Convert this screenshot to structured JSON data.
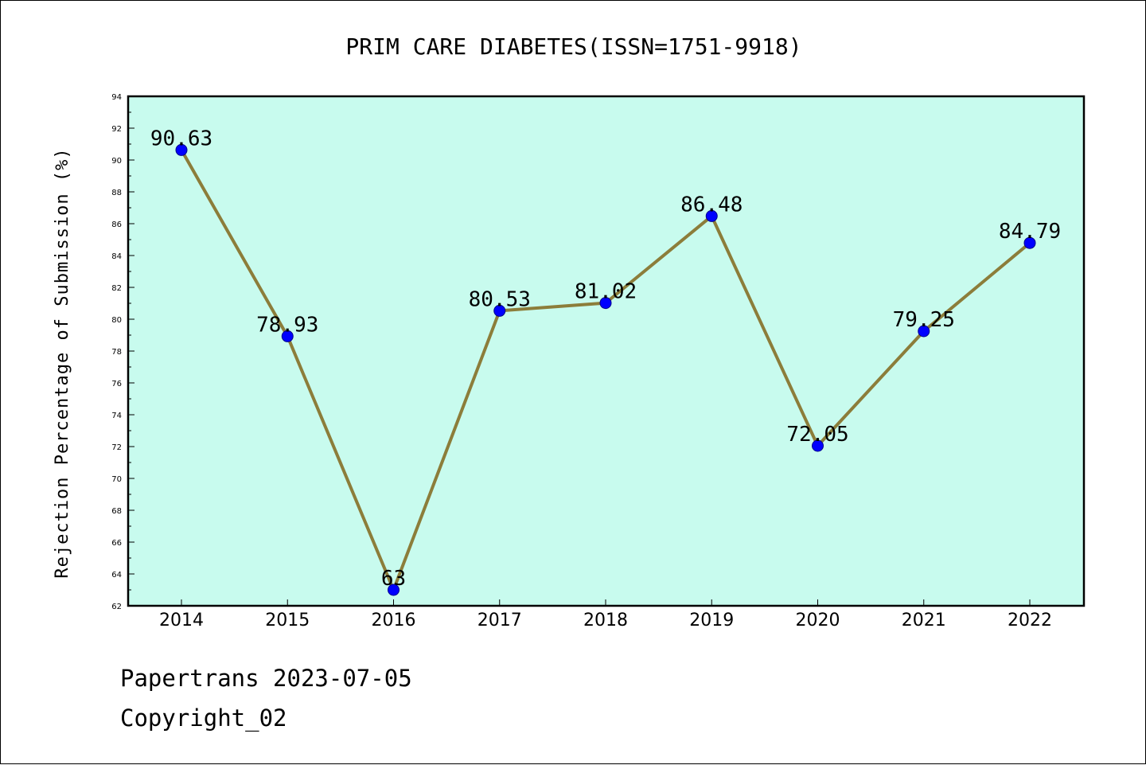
{
  "chart_data": {
    "type": "line",
    "title": "PRIM CARE DIABETES(ISSN=1751-9918)",
    "xlabel": "",
    "ylabel": "Rejection Percentage of Submission (%)",
    "categories": [
      "2014",
      "2015",
      "2016",
      "2017",
      "2018",
      "2019",
      "2020",
      "2021",
      "2022"
    ],
    "values": [
      90.63,
      78.93,
      63,
      80.53,
      81.02,
      86.48,
      72.05,
      79.25,
      84.79
    ],
    "data_labels": [
      "90.63",
      "78.93",
      "63",
      "80.53",
      "81.02",
      "86.48",
      "72.05",
      "79.25",
      "84.79"
    ],
    "ylim": [
      62,
      94
    ],
    "yticks": [
      62,
      64,
      66,
      68,
      70,
      72,
      74,
      76,
      78,
      80,
      82,
      84,
      86,
      88,
      90,
      92,
      94
    ],
    "grid": false,
    "legend": "none",
    "colors": {
      "plot_background": "#c8fbee",
      "line": "#8c7d3a",
      "marker": "#0000ff"
    }
  },
  "footer": {
    "source": "Papertrans 2023-07-05",
    "copyright": "Copyright_02"
  }
}
